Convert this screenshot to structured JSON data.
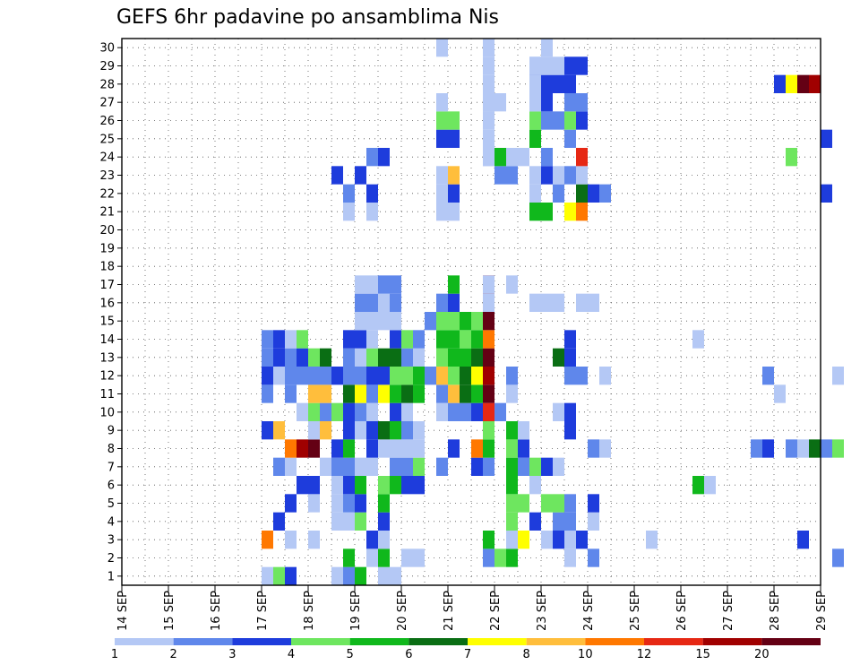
{
  "chart_data": {
    "type": "heatmap",
    "title": "GEFS 6hr padavine po ansamblima Nis",
    "y_categories": [
      "1",
      "2",
      "3",
      "4",
      "5",
      "6",
      "7",
      "8",
      "9",
      "10",
      "11",
      "12",
      "13",
      "14",
      "15",
      "16",
      "17",
      "18",
      "19",
      "20",
      "21",
      "22",
      "23",
      "24",
      "25",
      "26",
      "27",
      "28",
      "29",
      "30"
    ],
    "x_ticks": [
      "14 SEP",
      "15 SEP",
      "16 SEP",
      "17 SEP",
      "18 SEP",
      "19 SEP",
      "20 SEP",
      "21 SEP",
      "22 SEP",
      "23 SEP",
      "24 SEP",
      "25 SEP",
      "26 SEP",
      "27 SEP",
      "28 SEP",
      "29 SEP"
    ],
    "x_range_days": [
      14,
      29
    ],
    "grid": true,
    "colorbar": {
      "labels": [
        "1",
        "2",
        "3",
        "4",
        "5",
        "6",
        "7",
        "8",
        "10",
        "12",
        "15",
        "20"
      ],
      "colors": [
        "#b4c8f5",
        "#5f87eb",
        "#1e3cdc",
        "#6ee65f",
        "#10b81c",
        "#0a6e14",
        "#ffff00",
        "#ffbe3c",
        "#ff7800",
        "#e62814",
        "#a00000",
        "#640014"
      ]
    },
    "cells": [
      [
        1,
        1,
        1
      ],
      [
        2,
        1,
        4
      ],
      [
        3,
        1,
        3
      ],
      [
        7,
        1,
        1
      ],
      [
        8,
        1,
        2
      ],
      [
        9,
        1,
        5
      ],
      [
        11,
        1,
        1
      ],
      [
        12,
        1,
        1
      ],
      [
        8,
        2,
        5
      ],
      [
        10,
        2,
        1
      ],
      [
        11,
        2,
        5
      ],
      [
        13,
        2,
        1
      ],
      [
        14,
        2,
        1
      ],
      [
        20,
        2,
        2
      ],
      [
        21,
        2,
        4
      ],
      [
        22,
        2,
        5
      ],
      [
        27,
        2,
        1
      ],
      [
        29,
        2,
        2
      ],
      [
        1,
        3,
        9
      ],
      [
        3,
        3,
        1
      ],
      [
        5,
        3,
        1
      ],
      [
        10,
        3,
        3
      ],
      [
        11,
        3,
        1
      ],
      [
        20,
        3,
        5
      ],
      [
        22,
        3,
        1
      ],
      [
        23,
        3,
        7
      ],
      [
        25,
        3,
        1
      ],
      [
        26,
        3,
        3
      ],
      [
        27,
        3,
        1
      ],
      [
        28,
        3,
        3
      ],
      [
        2,
        4,
        3
      ],
      [
        7,
        4,
        1
      ],
      [
        8,
        4,
        1
      ],
      [
        9,
        4,
        4
      ],
      [
        11,
        4,
        3
      ],
      [
        22,
        4,
        4
      ],
      [
        24,
        4,
        3
      ],
      [
        26,
        4,
        2
      ],
      [
        27,
        4,
        2
      ],
      [
        29,
        4,
        1
      ],
      [
        3,
        5,
        3
      ],
      [
        5,
        5,
        1
      ],
      [
        7,
        5,
        1
      ],
      [
        8,
        5,
        2
      ],
      [
        9,
        5,
        3
      ],
      [
        11,
        5,
        5
      ],
      [
        22,
        5,
        4
      ],
      [
        23,
        5,
        4
      ],
      [
        25,
        5,
        4
      ],
      [
        26,
        5,
        4
      ],
      [
        27,
        5,
        2
      ],
      [
        29,
        5,
        3
      ],
      [
        4,
        6,
        3
      ],
      [
        5,
        6,
        3
      ],
      [
        7,
        6,
        1
      ],
      [
        8,
        6,
        3
      ],
      [
        9,
        6,
        5
      ],
      [
        11,
        6,
        4
      ],
      [
        12,
        6,
        5
      ],
      [
        13,
        6,
        3
      ],
      [
        14,
        6,
        3
      ],
      [
        22,
        6,
        5
      ],
      [
        24,
        6,
        1
      ],
      [
        2,
        7,
        2
      ],
      [
        3,
        7,
        1
      ],
      [
        6,
        7,
        1
      ],
      [
        7,
        7,
        2
      ],
      [
        8,
        7,
        2
      ],
      [
        9,
        7,
        1
      ],
      [
        10,
        7,
        1
      ],
      [
        12,
        7,
        2
      ],
      [
        13,
        7,
        2
      ],
      [
        14,
        7,
        4
      ],
      [
        16,
        7,
        2
      ],
      [
        19,
        7,
        3
      ],
      [
        20,
        7,
        2
      ],
      [
        22,
        7,
        5
      ],
      [
        23,
        7,
        2
      ],
      [
        24,
        7,
        4
      ],
      [
        25,
        7,
        3
      ],
      [
        26,
        7,
        1
      ],
      [
        3,
        8,
        9
      ],
      [
        4,
        8,
        11
      ],
      [
        5,
        8,
        12
      ],
      [
        7,
        8,
        3
      ],
      [
        8,
        8,
        5
      ],
      [
        10,
        8,
        3
      ],
      [
        11,
        8,
        1
      ],
      [
        12,
        8,
        1
      ],
      [
        13,
        8,
        1
      ],
      [
        14,
        8,
        1
      ],
      [
        17,
        8,
        3
      ],
      [
        19,
        8,
        9
      ],
      [
        20,
        8,
        5
      ],
      [
        22,
        8,
        4
      ],
      [
        23,
        8,
        3
      ],
      [
        29,
        8,
        2
      ],
      [
        30,
        8,
        1
      ],
      [
        1,
        9,
        3
      ],
      [
        2,
        9,
        8
      ],
      [
        5,
        9,
        1
      ],
      [
        6,
        9,
        8
      ],
      [
        8,
        9,
        3
      ],
      [
        9,
        9,
        1
      ],
      [
        10,
        9,
        3
      ],
      [
        11,
        9,
        6
      ],
      [
        12,
        9,
        5
      ],
      [
        13,
        9,
        2
      ],
      [
        14,
        9,
        1
      ],
      [
        20,
        9,
        4
      ],
      [
        22,
        9,
        5
      ],
      [
        23,
        9,
        1
      ],
      [
        27,
        9,
        3
      ],
      [
        4,
        10,
        1
      ],
      [
        5,
        10,
        4
      ],
      [
        6,
        10,
        2
      ],
      [
        7,
        10,
        4
      ],
      [
        8,
        10,
        3
      ],
      [
        9,
        10,
        2
      ],
      [
        10,
        10,
        1
      ],
      [
        12,
        10,
        3
      ],
      [
        13,
        10,
        1
      ],
      [
        16,
        10,
        1
      ],
      [
        17,
        10,
        2
      ],
      [
        18,
        10,
        2
      ],
      [
        19,
        10,
        3
      ],
      [
        20,
        10,
        10
      ],
      [
        21,
        10,
        2
      ],
      [
        26,
        10,
        1
      ],
      [
        27,
        10,
        3
      ],
      [
        1,
        11,
        2
      ],
      [
        3,
        11,
        2
      ],
      [
        5,
        11,
        8
      ],
      [
        6,
        11,
        8
      ],
      [
        8,
        11,
        6
      ],
      [
        9,
        11,
        7
      ],
      [
        10,
        11,
        2
      ],
      [
        11,
        11,
        7
      ],
      [
        12,
        11,
        5
      ],
      [
        13,
        11,
        6
      ],
      [
        14,
        11,
        5
      ],
      [
        16,
        11,
        2
      ],
      [
        17,
        11,
        8
      ],
      [
        18,
        11,
        6
      ],
      [
        19,
        11,
        5
      ],
      [
        20,
        11,
        12
      ],
      [
        22,
        11,
        1
      ],
      [
        1,
        12,
        3
      ],
      [
        2,
        12,
        1
      ],
      [
        3,
        12,
        2
      ],
      [
        4,
        12,
        2
      ],
      [
        5,
        12,
        2
      ],
      [
        6,
        12,
        2
      ],
      [
        7,
        12,
        3
      ],
      [
        8,
        12,
        2
      ],
      [
        9,
        12,
        2
      ],
      [
        10,
        12,
        3
      ],
      [
        11,
        12,
        3
      ],
      [
        12,
        12,
        4
      ],
      [
        13,
        12,
        4
      ],
      [
        14,
        12,
        5
      ],
      [
        15,
        12,
        2
      ],
      [
        16,
        12,
        8
      ],
      [
        17,
        12,
        4
      ],
      [
        18,
        12,
        6
      ],
      [
        19,
        12,
        7
      ],
      [
        20,
        12,
        11
      ],
      [
        22,
        12,
        2
      ],
      [
        27,
        12,
        2
      ],
      [
        28,
        12,
        2
      ],
      [
        30,
        12,
        1
      ]
    ],
    "cells_b": [
      [
        1,
        13,
        2
      ],
      [
        2,
        13,
        3
      ],
      [
        3,
        13,
        2
      ],
      [
        4,
        13,
        3
      ],
      [
        5,
        13,
        4
      ],
      [
        6,
        13,
        6
      ],
      [
        8,
        13,
        2
      ],
      [
        9,
        13,
        1
      ],
      [
        10,
        13,
        4
      ],
      [
        11,
        13,
        6
      ],
      [
        12,
        13,
        6
      ],
      [
        13,
        13,
        2
      ],
      [
        14,
        13,
        1
      ],
      [
        16,
        13,
        4
      ],
      [
        17,
        13,
        5
      ],
      [
        18,
        13,
        5
      ],
      [
        19,
        13,
        6
      ],
      [
        20,
        13,
        12
      ],
      [
        26,
        13,
        6
      ],
      [
        27,
        13,
        3
      ],
      [
        1,
        14,
        2
      ],
      [
        2,
        14,
        3
      ],
      [
        3,
        14,
        1
      ],
      [
        4,
        14,
        4
      ],
      [
        8,
        14,
        3
      ],
      [
        9,
        14,
        3
      ],
      [
        10,
        14,
        1
      ],
      [
        12,
        14,
        3
      ],
      [
        13,
        14,
        4
      ],
      [
        14,
        14,
        2
      ],
      [
        16,
        14,
        5
      ],
      [
        17,
        14,
        5
      ],
      [
        18,
        14,
        4
      ],
      [
        19,
        14,
        5
      ],
      [
        20,
        14,
        9
      ],
      [
        27,
        14,
        3
      ],
      [
        9,
        15,
        1
      ],
      [
        10,
        15,
        1
      ],
      [
        11,
        15,
        1
      ],
      [
        12,
        15,
        1
      ],
      [
        15,
        15,
        2
      ],
      [
        16,
        15,
        4
      ],
      [
        17,
        15,
        4
      ],
      [
        18,
        15,
        5
      ],
      [
        19,
        15,
        4
      ],
      [
        20,
        15,
        12
      ],
      [
        9,
        16,
        2
      ],
      [
        10,
        16,
        2
      ],
      [
        11,
        16,
        1
      ],
      [
        12,
        16,
        2
      ],
      [
        16,
        16,
        2
      ],
      [
        17,
        16,
        3
      ],
      [
        20,
        16,
        11
      ],
      [
        24,
        16,
        1
      ],
      [
        25,
        16,
        1
      ],
      [
        26,
        16,
        1
      ],
      [
        28,
        16,
        1
      ],
      [
        29,
        16,
        1
      ],
      [
        9,
        17,
        1
      ],
      [
        10,
        17,
        1
      ],
      [
        11,
        17,
        2
      ],
      [
        12,
        17,
        2
      ],
      [
        17,
        17,
        5
      ],
      [
        20,
        17,
        11
      ],
      [
        22,
        17,
        1
      ],
      [
        8,
        21,
        1
      ],
      [
        10,
        21,
        1
      ],
      [
        16,
        21,
        1
      ],
      [
        17,
        21,
        1
      ],
      [
        24,
        21,
        5
      ],
      [
        25,
        21,
        5
      ],
      [
        27,
        21,
        7
      ],
      [
        28,
        21,
        9
      ],
      [
        8,
        22,
        2
      ],
      [
        10,
        22,
        3
      ],
      [
        16,
        22,
        1
      ],
      [
        17,
        22,
        3
      ],
      [
        24,
        22,
        1
      ],
      [
        26,
        22,
        2
      ],
      [
        28,
        22,
        6
      ],
      [
        29,
        22,
        3
      ],
      [
        30,
        22,
        2
      ],
      [
        7,
        23,
        3
      ],
      [
        9,
        23,
        3
      ],
      [
        16,
        23,
        1
      ],
      [
        17,
        23,
        8
      ],
      [
        21,
        23,
        2
      ],
      [
        22,
        23,
        2
      ],
      [
        24,
        23,
        1
      ],
      [
        25,
        23,
        3
      ],
      [
        26,
        23,
        1
      ],
      [
        27,
        23,
        2
      ],
      [
        28,
        23,
        1
      ],
      [
        10,
        24,
        2
      ],
      [
        11,
        24,
        3
      ],
      [
        20,
        24,
        1
      ],
      [
        21,
        24,
        5
      ],
      [
        22,
        24,
        1
      ],
      [
        23,
        24,
        1
      ],
      [
        25,
        24,
        2
      ],
      [
        28,
        24,
        10
      ],
      [
        16,
        25,
        3
      ],
      [
        17,
        25,
        3
      ],
      [
        24,
        25,
        5
      ],
      [
        27,
        25,
        2
      ],
      [
        16,
        26,
        4
      ],
      [
        17,
        26,
        4
      ],
      [
        24,
        26,
        4
      ],
      [
        25,
        26,
        2
      ],
      [
        26,
        26,
        2
      ],
      [
        27,
        26,
        4
      ],
      [
        28,
        26,
        3
      ],
      [
        16,
        27,
        1
      ],
      [
        20,
        27,
        1
      ],
      [
        21,
        27,
        1
      ],
      [
        24,
        27,
        1
      ],
      [
        25,
        27,
        3
      ],
      [
        27,
        27,
        2
      ],
      [
        28,
        27,
        2
      ],
      [
        24,
        28,
        3
      ],
      [
        25,
        28,
        3
      ],
      [
        26,
        28,
        3
      ],
      [
        27,
        28,
        3
      ],
      [
        24,
        29,
        1
      ],
      [
        25,
        29,
        1
      ],
      [
        26,
        29,
        1
      ],
      [
        27,
        29,
        3
      ],
      [
        28,
        29,
        3
      ],
      [
        16,
        30,
        1
      ],
      [
        16,
        31,
        1
      ],
      [
        17,
        31,
        1
      ],
      [
        24,
        31,
        1
      ],
      [
        25,
        31,
        1
      ],
      [
        26,
        31,
        1
      ],
      [
        27,
        31,
        1
      ],
      [
        28,
        31,
        1
      ],
      [
        29,
        31,
        1
      ],
      [
        30,
        31,
        1
      ],
      [
        31,
        31,
        1
      ],
      [
        27,
        35,
        1
      ],
      [
        28,
        35,
        1
      ],
      [
        29,
        35,
        1
      ],
      [
        30,
        36,
        1
      ],
      [
        31,
        36,
        1
      ],
      [
        32,
        36,
        1
      ],
      [
        33,
        36,
        1
      ],
      [
        28,
        56,
        3
      ],
      [
        25,
        60,
        3
      ],
      [
        28,
        57,
        7
      ],
      [
        28,
        58,
        12
      ],
      [
        28,
        59,
        11
      ],
      [
        24,
        57,
        4
      ],
      [
        8,
        61,
        4
      ],
      [
        22,
        60,
        3
      ],
      [
        8,
        54,
        2
      ],
      [
        8,
        55,
        3
      ],
      [
        8,
        57,
        2
      ],
      [
        8,
        58,
        1
      ],
      [
        8,
        59,
        6
      ],
      [
        8,
        60,
        2
      ],
      [
        12,
        55,
        2
      ],
      [
        11,
        56,
        1
      ],
      [
        12,
        61,
        1
      ],
      [
        3,
        58,
        3
      ],
      [
        2,
        61,
        2
      ],
      [
        3,
        45,
        1
      ],
      [
        6,
        49,
        5
      ],
      [
        6,
        50,
        1
      ],
      [
        14,
        49,
        1
      ]
    ]
  }
}
